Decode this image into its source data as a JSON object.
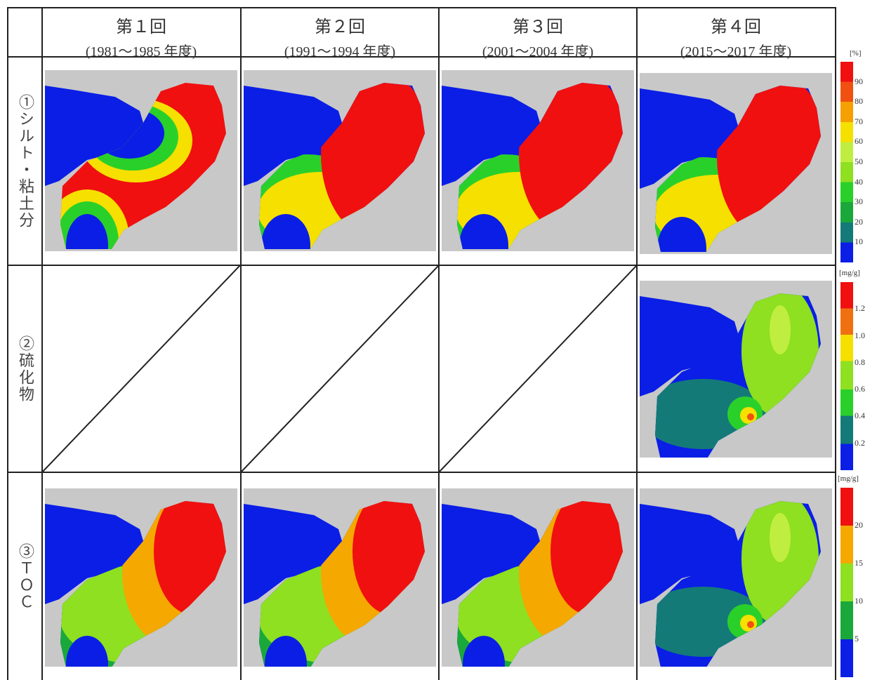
{
  "header": {
    "columns": [
      {
        "title": "第１回",
        "period": "(1981～1985 年度)"
      },
      {
        "title": "第２回",
        "period": "(1991～1994 年度)"
      },
      {
        "title": "第３回",
        "period": "(2001～2004 年度)"
      },
      {
        "title": "第４回",
        "period": "(2015～2017 年度)"
      }
    ]
  },
  "rows": [
    {
      "label": "①シルト・粘土分",
      "legend": {
        "unit": "[%]",
        "ticks": [
          "90",
          "80",
          "70",
          "60",
          "50",
          "40",
          "30",
          "20",
          "10"
        ]
      }
    },
    {
      "label": "②硫化物",
      "legend": {
        "unit": "[mg/g]",
        "ticks": [
          "1.2",
          "1.0",
          "0.8",
          "0.6",
          "0.4",
          "0.2"
        ]
      }
    },
    {
      "label": "③ＴＯＣ",
      "legend": {
        "unit": "[mg/g]",
        "ticks": [
          "20",
          "15",
          "10",
          "5"
        ]
      }
    }
  ]
}
